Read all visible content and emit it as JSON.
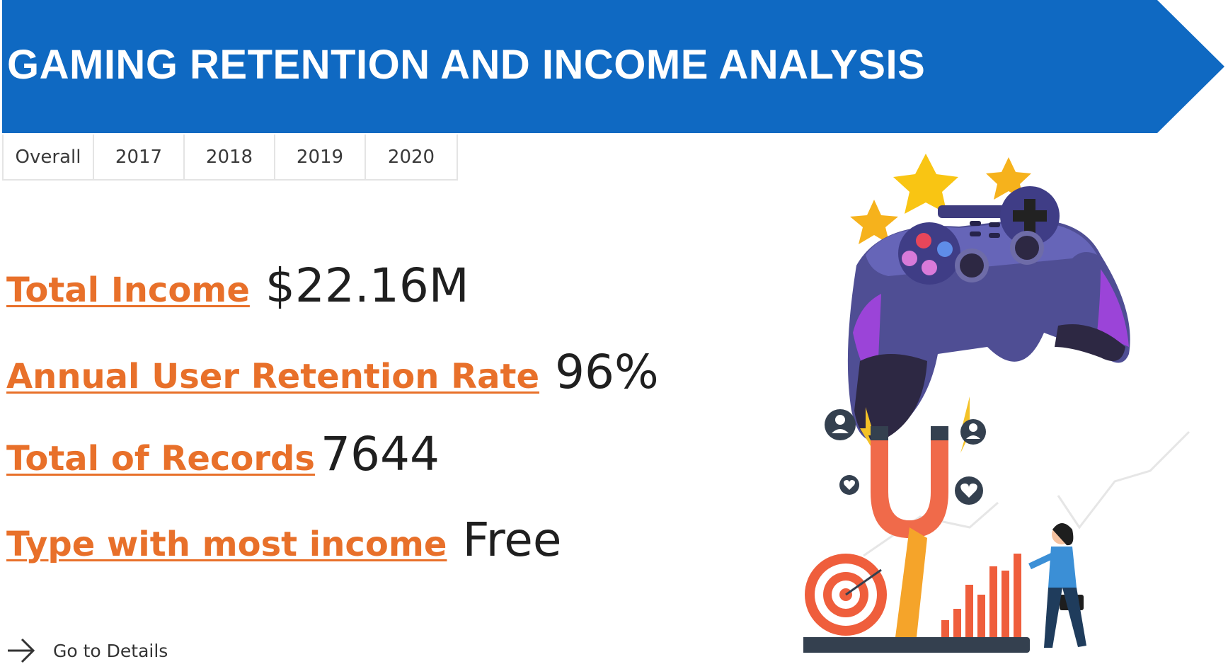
{
  "header": {
    "title": "GAMING RETENTION AND INCOME ANALYSIS",
    "color": "#0f69c2"
  },
  "tabs": [
    {
      "label": "Overall"
    },
    {
      "label": "2017"
    },
    {
      "label": "2018"
    },
    {
      "label": "2019"
    },
    {
      "label": "2020"
    }
  ],
  "kpis": {
    "income": {
      "label": "Total Income",
      "value": "$22.16M"
    },
    "retention": {
      "label": "Annual User Retention Rate",
      "value": "96%"
    },
    "records": {
      "label": "Total of Records",
      "value": "7644"
    },
    "type": {
      "label": "Type with most income",
      "value": "Free"
    }
  },
  "nav": {
    "details_label": "Go to Details",
    "icon": "arrow-right-icon"
  },
  "colors": {
    "accent": "#e8702a",
    "banner": "#0f69c2",
    "text": "#1f1f1f"
  },
  "illustration": {
    "icons": [
      "gamepad-icon",
      "star-icon",
      "magnet-icon",
      "target-icon",
      "bar-chart-icon",
      "user-icon",
      "heart-icon"
    ]
  }
}
